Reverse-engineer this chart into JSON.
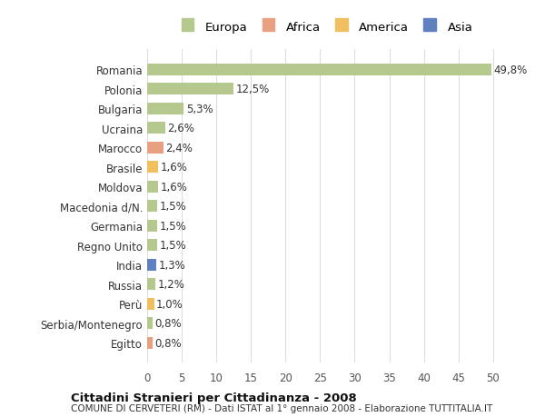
{
  "countries": [
    "Romania",
    "Polonia",
    "Bulgaria",
    "Ucraina",
    "Marocco",
    "Brasile",
    "Moldova",
    "Macedonia d/N.",
    "Germania",
    "Regno Unito",
    "India",
    "Russia",
    "Perù",
    "Serbia/Montenegro",
    "Egitto"
  ],
  "values": [
    49.8,
    12.5,
    5.3,
    2.6,
    2.4,
    1.6,
    1.6,
    1.5,
    1.5,
    1.5,
    1.3,
    1.2,
    1.0,
    0.8,
    0.8
  ],
  "labels": [
    "49,8%",
    "12,5%",
    "5,3%",
    "2,6%",
    "2,4%",
    "1,6%",
    "1,6%",
    "1,5%",
    "1,5%",
    "1,5%",
    "1,3%",
    "1,2%",
    "1,0%",
    "0,8%",
    "0,8%"
  ],
  "continents": [
    "Europa",
    "Europa",
    "Europa",
    "Europa",
    "Africa",
    "America",
    "Europa",
    "Europa",
    "Europa",
    "Europa",
    "Asia",
    "Europa",
    "America",
    "Europa",
    "Africa"
  ],
  "continent_colors": {
    "Europa": "#b5c98e",
    "Africa": "#e8a080",
    "America": "#f0c060",
    "Asia": "#6080c0"
  },
  "legend_order": [
    "Europa",
    "Africa",
    "America",
    "Asia"
  ],
  "title_bold": "Cittadini Stranieri per Cittadinanza - 2008",
  "subtitle": "COMUNE DI CERVETERI (RM) - Dati ISTAT al 1° gennaio 2008 - Elaborazione TUTTITALIA.IT",
  "xlim": [
    0,
    52
  ],
  "xticks": [
    0,
    5,
    10,
    15,
    20,
    25,
    30,
    35,
    40,
    45,
    50
  ],
  "bg_color": "#ffffff",
  "grid_color": "#dddddd"
}
